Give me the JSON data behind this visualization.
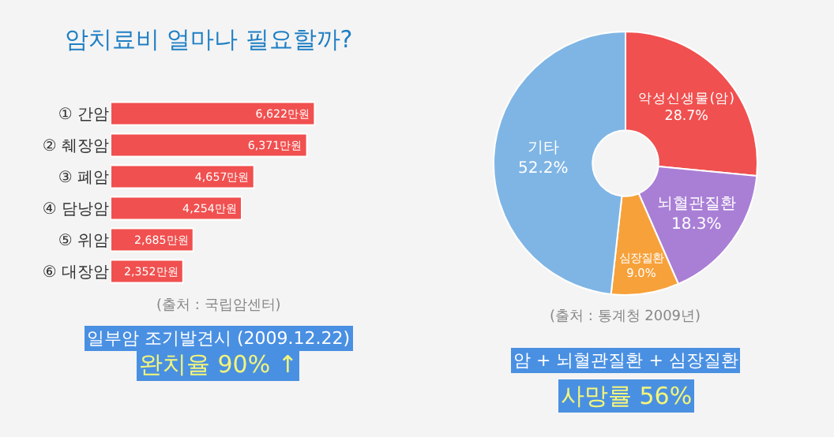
{
  "chart_data": [
    {
      "type": "bar",
      "orientation": "horizontal",
      "title": "암치료비 얼마나 필요할까?",
      "categories": [
        "① 간암",
        "② 췌장암",
        "③ 폐암",
        "④ 담낭암",
        "⑤ 위암",
        "⑥ 대장암"
      ],
      "values": [
        6622,
        6371,
        4657,
        4254,
        2685,
        2352
      ],
      "value_labels": [
        "6,622만원",
        "6,371만원",
        "4,657만원",
        "4,254만원",
        "2,685만원",
        "2,352만원"
      ],
      "color": "#f0504f",
      "annotations": [
        "(출처 : 국립암센터)",
        "일부암 조기발견시 (2009.12.22)",
        "완치율 90% ↑"
      ]
    },
    {
      "type": "donut",
      "categories": [
        "악성신생물(암)",
        "뇌혈관질환",
        "심장질환",
        "기타"
      ],
      "values": [
        28.7,
        18.3,
        9.0,
        52.2
      ],
      "value_labels": [
        "28.7%",
        "18.3%",
        "9.0%",
        "52.2%"
      ],
      "colors": [
        "#f0504f",
        "#a97fd6",
        "#f7a13a",
        "#7fb5e4"
      ],
      "annotations": [
        "(출처 : 통계청 2009년)",
        "암 + 뇌혈관질환 + 심장질환",
        "사망률 56%"
      ]
    }
  ]
}
